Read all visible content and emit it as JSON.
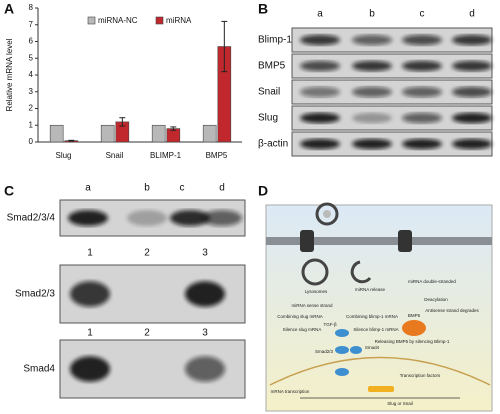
{
  "chart_data": {
    "type": "bar",
    "panel": "A",
    "y_label": "Relative mRNA level",
    "categories": [
      "Slug",
      "Snail",
      "BLIMP-1",
      "BMP5"
    ],
    "series": [
      {
        "name": "miRNA-NC",
        "color": "#b8b8b8",
        "values": [
          1,
          1,
          1,
          1
        ]
      },
      {
        "name": "miRNA",
        "color": "#c0282d",
        "values": [
          0.08,
          1.2,
          0.8,
          5.7
        ],
        "errors": [
          0.02,
          0.25,
          0.1,
          1.5
        ]
      }
    ],
    "ylim": [
      0,
      8
    ],
    "yticks": [
      0,
      1,
      2,
      3,
      4,
      5,
      6,
      7,
      8
    ]
  },
  "panel_b": {
    "panel": "B",
    "lanes": [
      "a",
      "b",
      "c",
      "d"
    ],
    "rows": [
      "Blimp-1",
      "BMP5",
      "Snail",
      "Slug",
      "β-actin"
    ]
  },
  "panel_c": {
    "panel": "C",
    "lanes": [
      "a",
      "b",
      "c",
      "d"
    ],
    "numbers_1": [
      "1",
      "2",
      "3"
    ],
    "numbers_2": [
      "1",
      "2",
      "3"
    ],
    "rows": [
      "Smad2/3/4",
      "Smad2/3",
      "Smad4"
    ]
  },
  "panel_d": {
    "panel": "D",
    "labels": [
      "Lysosomes",
      "miRNA release",
      "miRNA double-stranded",
      "Deacylation",
      "miRNA sense strand",
      "Antisense strand degrades",
      "Combining slug mRNA",
      "Combining blimp-1 mRNA",
      "Silence slug mRNA",
      "Silence blimp-1 mRNA",
      "TGF-β",
      "Smad2/3",
      "Smad4",
      "BMP5",
      "Releasing BMP5 by silencing Blimp-1",
      "Transcription factors",
      "mRNA transcription",
      "Slug or Snail"
    ]
  }
}
